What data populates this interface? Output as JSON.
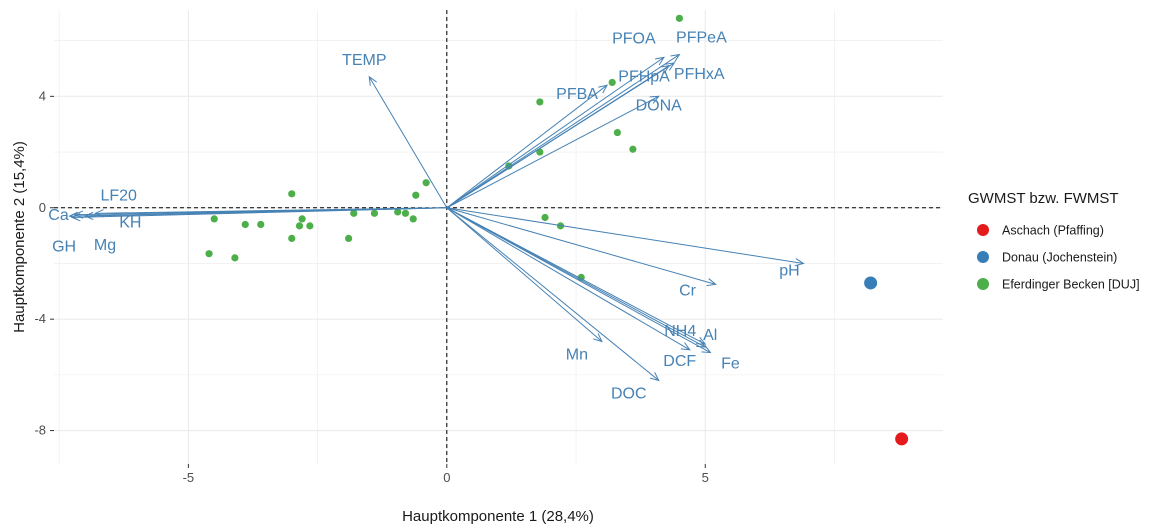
{
  "chart_data": {
    "type": "scatter",
    "subtype": "pca-biplot",
    "xlabel": "Hauptkomponente 1 (28,4%)",
    "ylabel": "Hauptkomponente 2 (15,4%)",
    "xlim": [
      -7.6,
      9.6
    ],
    "ylim": [
      -9.2,
      7.1
    ],
    "x_ticks": [
      -5,
      0,
      5
    ],
    "y_ticks": [
      -8,
      -4,
      0,
      4
    ],
    "x_tick_labels": [
      "-5",
      "0",
      "5"
    ],
    "y_tick_labels": [
      "-8",
      "-4",
      "0",
      "4"
    ],
    "grid": true,
    "reference_lines": {
      "x": 0,
      "y": 0,
      "style": "dashed"
    },
    "legend": {
      "title": "GWMST bzw. FWMST",
      "position": "right",
      "entries": [
        {
          "label": "Aschach (Pfaffing)",
          "color": "#e41a1c"
        },
        {
          "label": "Donau (Jochenstein)",
          "color": "#377eb8"
        },
        {
          "label": "Eferdinger Becken [DUJ]",
          "color": "#4daf4a"
        }
      ]
    },
    "series": [
      {
        "name": "Aschach (Pfaffing)",
        "color": "#e41a1c",
        "points": [
          {
            "x": 8.8,
            "y": -8.3
          }
        ]
      },
      {
        "name": "Donau (Jochenstein)",
        "color": "#377eb8",
        "points": [
          {
            "x": 8.2,
            "y": -2.7
          }
        ]
      },
      {
        "name": "Eferdinger Becken [DUJ]",
        "color": "#4daf4a",
        "points": [
          {
            "x": 4.5,
            "y": 6.8
          },
          {
            "x": 3.2,
            "y": 4.5
          },
          {
            "x": 1.8,
            "y": 3.8
          },
          {
            "x": 3.3,
            "y": 2.7
          },
          {
            "x": 3.6,
            "y": 2.1
          },
          {
            "x": 1.8,
            "y": 2.0
          },
          {
            "x": 1.2,
            "y": 1.5
          },
          {
            "x": -0.4,
            "y": 0.9
          },
          {
            "x": -0.6,
            "y": 0.45
          },
          {
            "x": -3.0,
            "y": 0.5
          },
          {
            "x": -0.8,
            "y": -0.2
          },
          {
            "x": -0.95,
            "y": -0.15
          },
          {
            "x": -0.65,
            "y": -0.4
          },
          {
            "x": -1.4,
            "y": -0.2
          },
          {
            "x": -1.8,
            "y": -0.2
          },
          {
            "x": -2.8,
            "y": -0.4
          },
          {
            "x": -2.85,
            "y": -0.65
          },
          {
            "x": -2.65,
            "y": -0.65
          },
          {
            "x": -3.6,
            "y": -0.6
          },
          {
            "x": -3.9,
            "y": -0.6
          },
          {
            "x": -4.5,
            "y": -0.4
          },
          {
            "x": -3.0,
            "y": -1.1
          },
          {
            "x": -1.9,
            "y": -1.1
          },
          {
            "x": -4.6,
            "y": -1.65
          },
          {
            "x": -4.1,
            "y": -1.8
          },
          {
            "x": 1.9,
            "y": -0.35
          },
          {
            "x": 2.2,
            "y": -0.65
          },
          {
            "x": 2.6,
            "y": -2.5
          }
        ]
      }
    ],
    "loadings": [
      {
        "label": "TEMP",
        "x": -1.5,
        "y": 4.7
      },
      {
        "label": "PFOA",
        "x": 4.2,
        "y": 5.4
      },
      {
        "label": "PFPeA",
        "x": 4.5,
        "y": 5.5
      },
      {
        "label": "PFHpA",
        "x": 4.3,
        "y": 5.1
      },
      {
        "label": "PFHxA",
        "x": 4.4,
        "y": 5.2
      },
      {
        "label": "PFBA",
        "x": 3.1,
        "y": 4.4
      },
      {
        "label": "DONA",
        "x": 4.1,
        "y": 4.0
      },
      {
        "label": "LF20",
        "x": -7.2,
        "y": -0.25
      },
      {
        "label": "Ca",
        "x": -7.3,
        "y": -0.3
      },
      {
        "label": "GH",
        "x": -7.25,
        "y": -0.35
      },
      {
        "label": "Mg",
        "x": -7.0,
        "y": -0.3
      },
      {
        "label": "KH",
        "x": -6.8,
        "y": -0.2
      },
      {
        "label": "pH",
        "x": 6.9,
        "y": -2.0
      },
      {
        "label": "Cr",
        "x": 5.2,
        "y": -2.75
      },
      {
        "label": "NH4",
        "x": 5.0,
        "y": -4.9
      },
      {
        "label": "Al",
        "x": 5.0,
        "y": -5.0
      },
      {
        "label": "Fe",
        "x": 5.1,
        "y": -5.2
      },
      {
        "label": "Mn",
        "x": 3.0,
        "y": -4.8
      },
      {
        "label": "DCF",
        "x": 4.7,
        "y": -5.1
      },
      {
        "label": "DOC",
        "x": 4.1,
        "y": -6.2
      }
    ],
    "loading_color": "#4682b4"
  }
}
